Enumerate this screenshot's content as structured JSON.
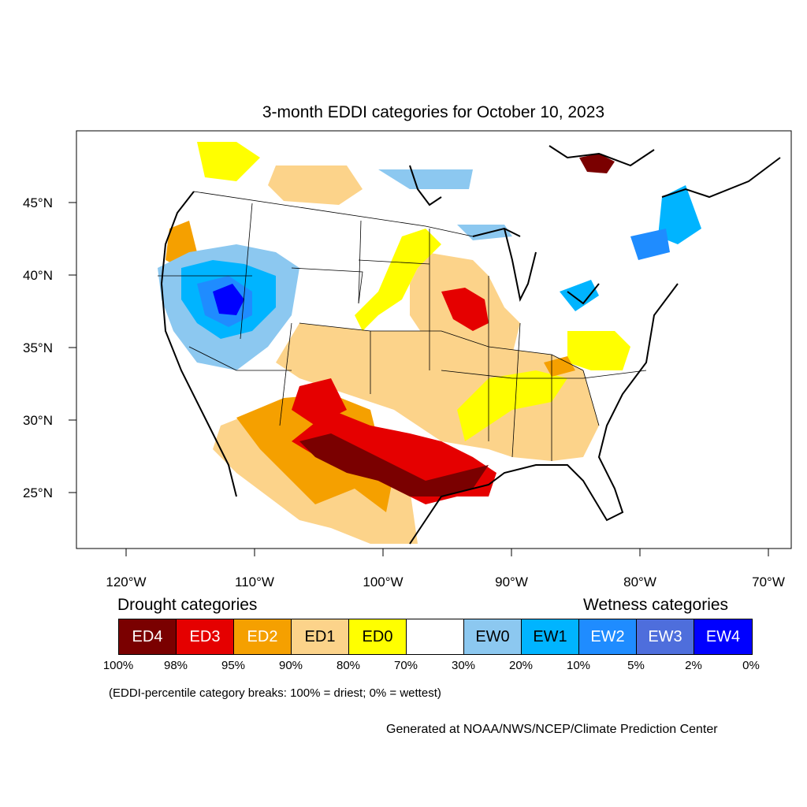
{
  "title": "3-month EDDI categories for October 10, 2023",
  "map": {
    "lon_ticks": [
      "120°W",
      "110°W",
      "100°W",
      "90°W",
      "80°W",
      "70°W"
    ],
    "lat_ticks": [
      "45°N",
      "40°N",
      "35°N",
      "30°N",
      "25°N"
    ],
    "colors": {
      "ED4": "#7a0000",
      "ED3": "#e50000",
      "ED2": "#f5a000",
      "ED1": "#fcd38a",
      "ED0": "#ffff00",
      "neutral": "#ffffff",
      "EW0": "#8cc8f0",
      "EW1": "#00b4ff",
      "EW2": "#1f8cff",
      "EW3": "#4e6edc",
      "EW4": "#0000ff"
    }
  },
  "legend": {
    "drought_heading": "Drought categories",
    "wetness_heading": "Wetness categories",
    "boxes": [
      {
        "label": "ED4",
        "color": "#7a0000",
        "text_color": "#ffffff"
      },
      {
        "label": "ED3",
        "color": "#e50000",
        "text_color": "#ffffff"
      },
      {
        "label": "ED2",
        "color": "#f5a000",
        "text_color": "#ffffff"
      },
      {
        "label": "ED1",
        "color": "#fcd38a",
        "text_color": "#000000"
      },
      {
        "label": "ED0",
        "color": "#ffff00",
        "text_color": "#000000"
      },
      {
        "label": "",
        "color": "#ffffff",
        "text_color": "#000000"
      },
      {
        "label": "EW0",
        "color": "#8cc8f0",
        "text_color": "#000000"
      },
      {
        "label": "EW1",
        "color": "#00b4ff",
        "text_color": "#000000"
      },
      {
        "label": "EW2",
        "color": "#1f8cff",
        "text_color": "#ffffff"
      },
      {
        "label": "EW3",
        "color": "#4e6edc",
        "text_color": "#ffffff"
      },
      {
        "label": "EW4",
        "color": "#0000ff",
        "text_color": "#ffffff"
      }
    ],
    "breaks": [
      "100%",
      "98%",
      "95%",
      "90%",
      "80%",
      "70%",
      "30%",
      "20%",
      "10%",
      "5%",
      "2%",
      "0%"
    ]
  },
  "note": "(EDDI-percentile category breaks: 100% = driest; 0% = wettest)",
  "credit": "Generated at NOAA/NWS/NCEP/Climate Prediction Center"
}
